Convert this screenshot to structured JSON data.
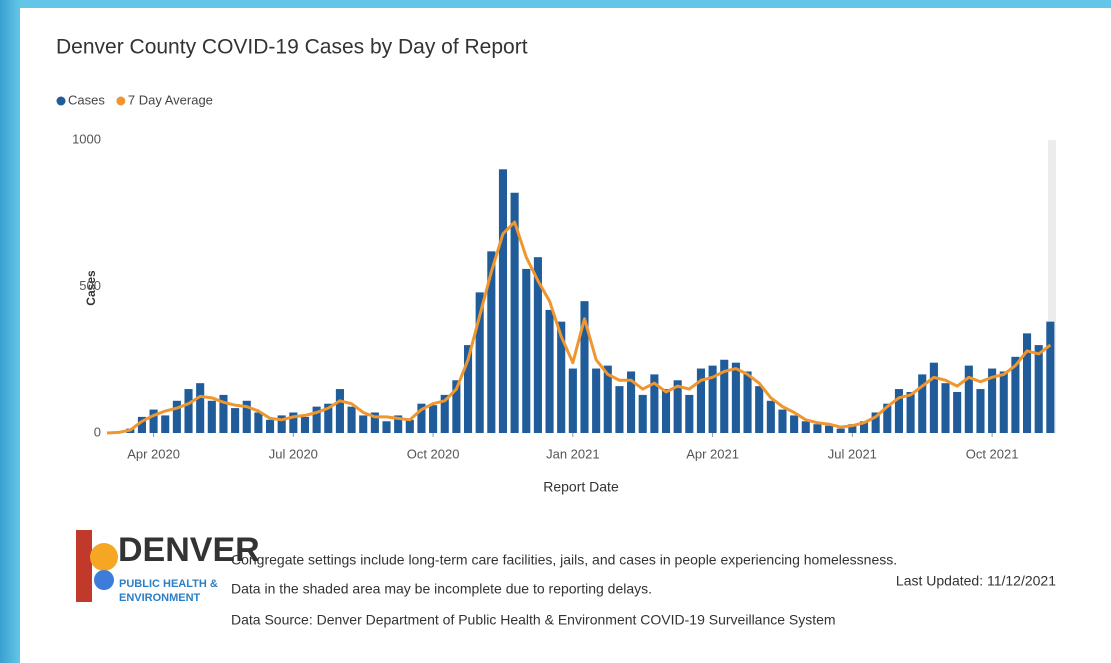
{
  "chart_data": {
    "type": "bar-line",
    "title": "Denver County COVID-19 Cases by Day of Report",
    "x_label": "Report Date",
    "y_label": "Cases",
    "x": [
      2,
      2.25,
      2.5,
      2.75,
      3,
      3.25,
      3.5,
      3.75,
      4,
      4.25,
      4.5,
      4.75,
      5,
      5.25,
      5.5,
      5.75,
      6,
      6.25,
      6.5,
      6.75,
      7,
      7.25,
      7.5,
      7.75,
      8,
      8.25,
      8.5,
      8.75,
      9,
      9.25,
      9.5,
      9.75,
      10,
      10.25,
      10.5,
      10.75,
      11,
      11.25,
      11.5,
      11.75,
      12,
      12.25,
      12.5,
      12.75,
      13,
      13.25,
      13.5,
      13.75,
      14,
      14.25,
      14.5,
      14.75,
      15,
      15.25,
      15.5,
      15.75,
      16,
      16.25,
      16.5,
      16.75,
      17,
      17.25,
      17.5,
      17.75,
      18,
      18.25,
      18.5,
      18.75,
      19,
      19.25,
      19.5,
      19.75,
      20,
      20.25,
      20.5,
      20.75,
      21,
      21.25,
      21.5,
      21.75,
      22,
      22.25
    ],
    "series": [
      {
        "name": "Cases",
        "color": "#1f5c99",
        "values": [
          0,
          3,
          15,
          55,
          80,
          60,
          110,
          150,
          170,
          110,
          130,
          85,
          110,
          70,
          45,
          60,
          70,
          55,
          90,
          100,
          150,
          90,
          60,
          70,
          40,
          60,
          45,
          100,
          95,
          130,
          180,
          300,
          480,
          620,
          900,
          820,
          560,
          600,
          420,
          380,
          220,
          450,
          220,
          230,
          160,
          210,
          130,
          200,
          150,
          180,
          130,
          220,
          230,
          250,
          240,
          210,
          160,
          110,
          80,
          60,
          40,
          30,
          25,
          15,
          30,
          40,
          70,
          100,
          150,
          140,
          200,
          240,
          170,
          140,
          230,
          150,
          220,
          210,
          260,
          340,
          300,
          380
        ]
      },
      {
        "name": "7 Day Average",
        "color": "#f0962e",
        "values": [
          0,
          2,
          10,
          40,
          60,
          75,
          85,
          100,
          125,
          120,
          105,
          95,
          90,
          75,
          50,
          45,
          55,
          60,
          70,
          85,
          110,
          100,
          70,
          55,
          55,
          50,
          45,
          80,
          100,
          110,
          150,
          250,
          400,
          550,
          680,
          720,
          600,
          520,
          450,
          330,
          240,
          390,
          250,
          200,
          180,
          180,
          150,
          170,
          140,
          160,
          150,
          180,
          190,
          210,
          220,
          200,
          170,
          120,
          90,
          70,
          45,
          35,
          30,
          20,
          25,
          35,
          55,
          90,
          120,
          130,
          160,
          190,
          180,
          160,
          190,
          175,
          190,
          200,
          230,
          280,
          270,
          300
        ]
      }
    ],
    "xlim": [
      2,
      22.35
    ],
    "xticks": [
      {
        "value": 3,
        "label": "Apr 2020"
      },
      {
        "value": 6,
        "label": "Jul 2020"
      },
      {
        "value": 9,
        "label": "Oct 2020"
      },
      {
        "value": 12,
        "label": "Jan 2021"
      },
      {
        "value": 15,
        "label": "Apr 2021"
      },
      {
        "value": 18,
        "label": "Jul 2021"
      },
      {
        "value": 21,
        "label": "Oct 2021"
      }
    ],
    "ylim": [
      0,
      1000
    ],
    "yticks": [
      0,
      500,
      1000
    ],
    "grid": false,
    "legend": "top-left"
  },
  "logo": {
    "name": "DENVER",
    "sub": [
      "PUBLIC HEALTH &",
      "ENVIRONMENT"
    ]
  },
  "footer": {
    "notes": [
      "Congregate settings include long-term care facilities, jails, and cases in people experiencing homelessness.",
      "Data in the shaded area may be incomplete due to reporting delays.",
      "Data Source: Denver Department of Public Health & Environment COVID-19 Surveillance System"
    ],
    "last_updated": "Last Updated: 11/12/2021"
  }
}
